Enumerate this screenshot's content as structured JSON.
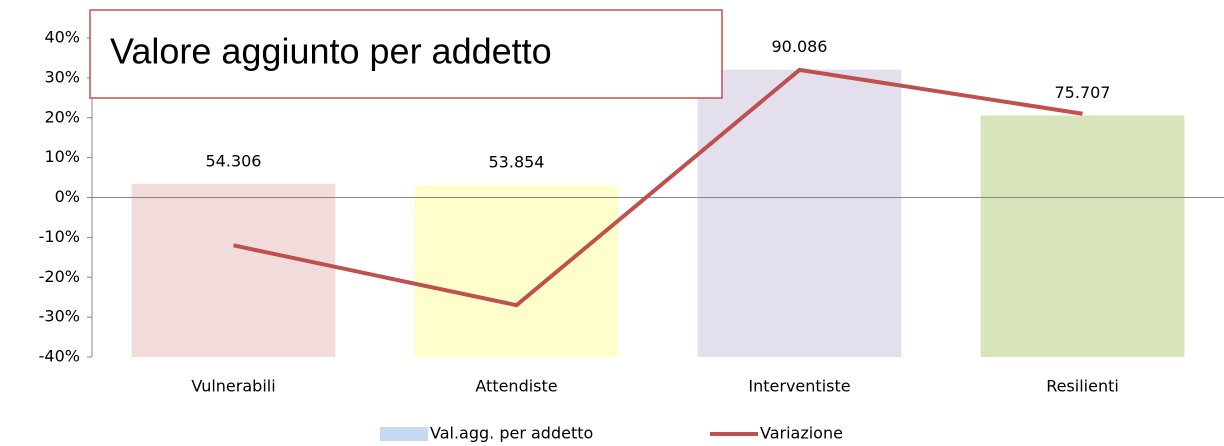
{
  "chart_data": {
    "type": "bar",
    "title": "Valore aggiunto per addetto",
    "categories": [
      "Vulnerabili",
      "Attendiste",
      "Interventiste",
      "Resilienti"
    ],
    "series": [
      {
        "name": "Val.agg. per addetto",
        "type": "bar",
        "axis": "y2",
        "color": "#c5d9f1",
        "colors": [
          "#f2dcdb",
          "#ffffcc",
          "#e4dfec",
          "#d8e4bc"
        ],
        "values": [
          54306,
          53854,
          90086,
          75707
        ],
        "value_labels": [
          "54.306",
          "53.854",
          "90.086",
          "75.707"
        ]
      },
      {
        "name": "Variazione",
        "type": "line",
        "color": "#c0504d",
        "values": [
          -12,
          -27,
          32,
          21
        ]
      }
    ],
    "ylim": [
      -40,
      40
    ],
    "yticks": [
      {
        "value": -40,
        "label": "-40%"
      },
      {
        "value": -30,
        "label": "-30%"
      },
      {
        "value": -20,
        "label": "-20%"
      },
      {
        "value": -10,
        "label": "-10%"
      },
      {
        "value": 0,
        "label": "0%"
      },
      {
        "value": 10,
        "label": "10%"
      },
      {
        "value": 20,
        "label": "20%"
      },
      {
        "value": 30,
        "label": "30%"
      },
      {
        "value": 40,
        "label": "40%"
      }
    ],
    "y2lim": [
      0,
      100000
    ],
    "legend": "bottom"
  }
}
